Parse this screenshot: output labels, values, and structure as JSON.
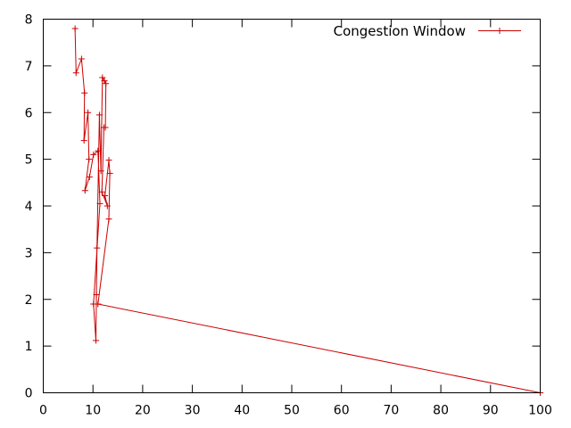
{
  "chart_data": {
    "type": "line",
    "title": "",
    "xlabel": "",
    "ylabel": "",
    "xlim": [
      0,
      100
    ],
    "ylim": [
      0,
      8
    ],
    "x_ticks": [
      0,
      10,
      20,
      30,
      40,
      50,
      60,
      70,
      80,
      90,
      100
    ],
    "y_ticks": [
      0,
      1,
      2,
      3,
      4,
      5,
      6,
      7,
      8
    ],
    "grid": false,
    "legend_position": "top-right",
    "series": [
      {
        "name": "Congestion Window",
        "color": "#cc0000",
        "marker": "plus",
        "points": [
          [
            6.4,
            7.8
          ],
          [
            6.6,
            6.85
          ],
          [
            7.7,
            7.15
          ],
          [
            8.3,
            6.42
          ],
          [
            8.2,
            5.4
          ],
          [
            9.0,
            6.0
          ],
          [
            9.2,
            5.0
          ],
          [
            8.4,
            4.33
          ],
          [
            9.3,
            4.62
          ],
          [
            10.1,
            5.1
          ],
          [
            11.0,
            5.18
          ],
          [
            11.4,
            4.05
          ],
          [
            10.1,
            1.9
          ],
          [
            10.6,
            1.12
          ],
          [
            10.7,
            2.1
          ],
          [
            10.8,
            3.1
          ],
          [
            11.3,
            5.95
          ],
          [
            11.6,
            4.75
          ],
          [
            11.9,
            6.75
          ],
          [
            12.3,
            6.68
          ],
          [
            12.6,
            6.62
          ],
          [
            12.5,
            5.68
          ],
          [
            12.2,
            5.68
          ],
          [
            11.8,
            4.3
          ],
          [
            12.9,
            4.0
          ],
          [
            12.4,
            4.22
          ],
          [
            13.2,
            4.98
          ],
          [
            13.4,
            4.7
          ],
          [
            13.2,
            3.72
          ],
          [
            11.0,
            1.9
          ],
          [
            100,
            0
          ]
        ]
      }
    ]
  }
}
